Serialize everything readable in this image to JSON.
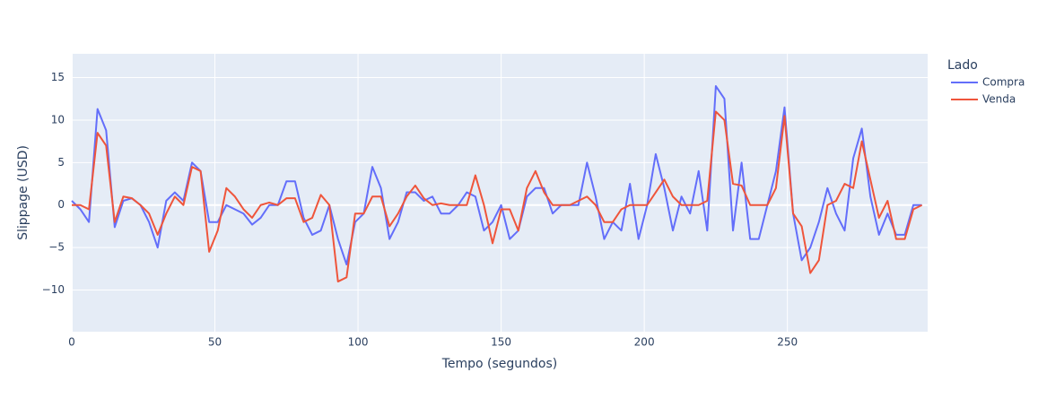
{
  "chart_data": {
    "type": "line",
    "x_label": "Tempo (segundos)",
    "y_label": "Slippage (USD)",
    "legend_title": "Lado",
    "xlim": [
      0,
      299
    ],
    "ylim": [
      -14.9,
      17.8
    ],
    "xticks": [
      0,
      50,
      100,
      150,
      200,
      250
    ],
    "yticks": [
      {
        "value": -10,
        "label": "−10"
      },
      {
        "value": -5,
        "label": "−5"
      },
      0,
      5,
      10,
      15
    ],
    "grid": true,
    "x": [
      0,
      3,
      6,
      9,
      12,
      15,
      18,
      21,
      24,
      27,
      30,
      33,
      36,
      39,
      42,
      45,
      48,
      51,
      54,
      57,
      60,
      63,
      66,
      69,
      72,
      75,
      78,
      81,
      84,
      87,
      90,
      93,
      96,
      99,
      102,
      105,
      108,
      111,
      114,
      117,
      120,
      123,
      126,
      129,
      132,
      135,
      138,
      141,
      144,
      147,
      150,
      153,
      156,
      159,
      162,
      165,
      168,
      171,
      174,
      177,
      180,
      183,
      186,
      189,
      192,
      195,
      198,
      201,
      204,
      207,
      210,
      213,
      216,
      219,
      222,
      225,
      228,
      231,
      234,
      237,
      240,
      243,
      246,
      249,
      252,
      255,
      258,
      261,
      264,
      267,
      270,
      273,
      276,
      279,
      282,
      285,
      288,
      291,
      294,
      297
    ],
    "series": [
      {
        "name": "Compra",
        "color": "#636efa",
        "values": [
          0.5,
          -0.5,
          -2,
          11.3,
          8.8,
          -2.6,
          0.5,
          0.8,
          0,
          -2,
          -5,
          0.5,
          1.5,
          0.5,
          5,
          4,
          -2,
          -2,
          0,
          -0.5,
          -1,
          -2.3,
          -1.5,
          0,
          0,
          2.8,
          2.8,
          -1.5,
          -3.5,
          -3,
          0,
          -4,
          -7,
          -2,
          -1,
          4.5,
          2,
          -4,
          -2,
          1.5,
          1.5,
          0.5,
          1,
          -1,
          -1,
          0,
          1.5,
          1,
          -3,
          -2,
          0,
          -4,
          -3,
          1,
          2,
          2,
          -1,
          0,
          0,
          0,
          5,
          1,
          -4,
          -2,
          -3,
          2.5,
          -4,
          0,
          6,
          2,
          -3,
          1,
          -1,
          4,
          -3,
          14,
          12.5,
          -3,
          5,
          -4,
          -4,
          0,
          4,
          11.5,
          -1,
          -6.5,
          -5,
          -2,
          2,
          -1,
          -3,
          5.5,
          9,
          1,
          -3.5,
          -1,
          -3.5,
          -3.5,
          0,
          0
        ]
      },
      {
        "name": "Venda",
        "color": "#ef553b",
        "values": [
          0,
          0,
          -0.5,
          8.5,
          7,
          -2,
          1,
          0.8,
          0,
          -1,
          -3.5,
          -1,
          1,
          0,
          4.5,
          4,
          -5.5,
          -3,
          2,
          1,
          -0.5,
          -1.5,
          0,
          0.3,
          0,
          0.8,
          0.8,
          -2,
          -1.5,
          1.2,
          0,
          -9,
          -8.5,
          -1,
          -1,
          1,
          1,
          -2.5,
          -1,
          1,
          2.3,
          0.8,
          0,
          0.2,
          0,
          0,
          0,
          3.5,
          0,
          -4.5,
          -0.5,
          -0.5,
          -3,
          2,
          4,
          1.5,
          0,
          0,
          0,
          0.5,
          1,
          0,
          -2,
          -2,
          -0.5,
          0,
          0,
          0,
          1.5,
          3,
          1,
          0,
          0,
          0,
          0.5,
          11,
          10,
          2.5,
          2.3,
          0,
          0,
          0,
          2,
          10.5,
          -1,
          -2.5,
          -8,
          -6.5,
          0,
          0.5,
          2.5,
          2,
          7.5,
          3,
          -1.5,
          0.5,
          -4,
          -4,
          -0.5,
          0
        ]
      }
    ]
  }
}
